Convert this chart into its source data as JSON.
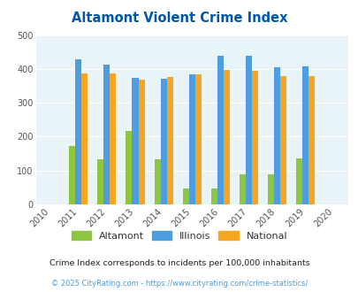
{
  "title": "Altamont Violent Crime Index",
  "years": [
    2011,
    2012,
    2013,
    2014,
    2015,
    2016,
    2017,
    2018,
    2019
  ],
  "altamont": [
    172,
    133,
    217,
    133,
    46,
    46,
    90,
    90,
    135
  ],
  "illinois": [
    428,
    414,
    374,
    370,
    384,
    438,
    438,
    405,
    407
  ],
  "national": [
    387,
    387,
    368,
    376,
    383,
    397,
    394,
    380,
    379
  ],
  "color_altamont": "#8dc63f",
  "color_illinois": "#4d9de0",
  "color_national": "#f5a623",
  "bg_color": "#e8f4f8",
  "title_color": "#0057a8",
  "ylim": [
    0,
    500
  ],
  "yticks": [
    0,
    100,
    200,
    300,
    400,
    500
  ],
  "footnote1": "Crime Index corresponds to incidents per 100,000 inhabitants",
  "footnote2": "© 2025 CityRating.com - https://www.cityrating.com/crime-statistics/",
  "footnote1_color": "#222222",
  "footnote2_color": "#4d9de0",
  "bar_width": 0.22,
  "all_xtick_years": [
    2010,
    2011,
    2012,
    2013,
    2014,
    2015,
    2016,
    2017,
    2018,
    2019,
    2020
  ]
}
